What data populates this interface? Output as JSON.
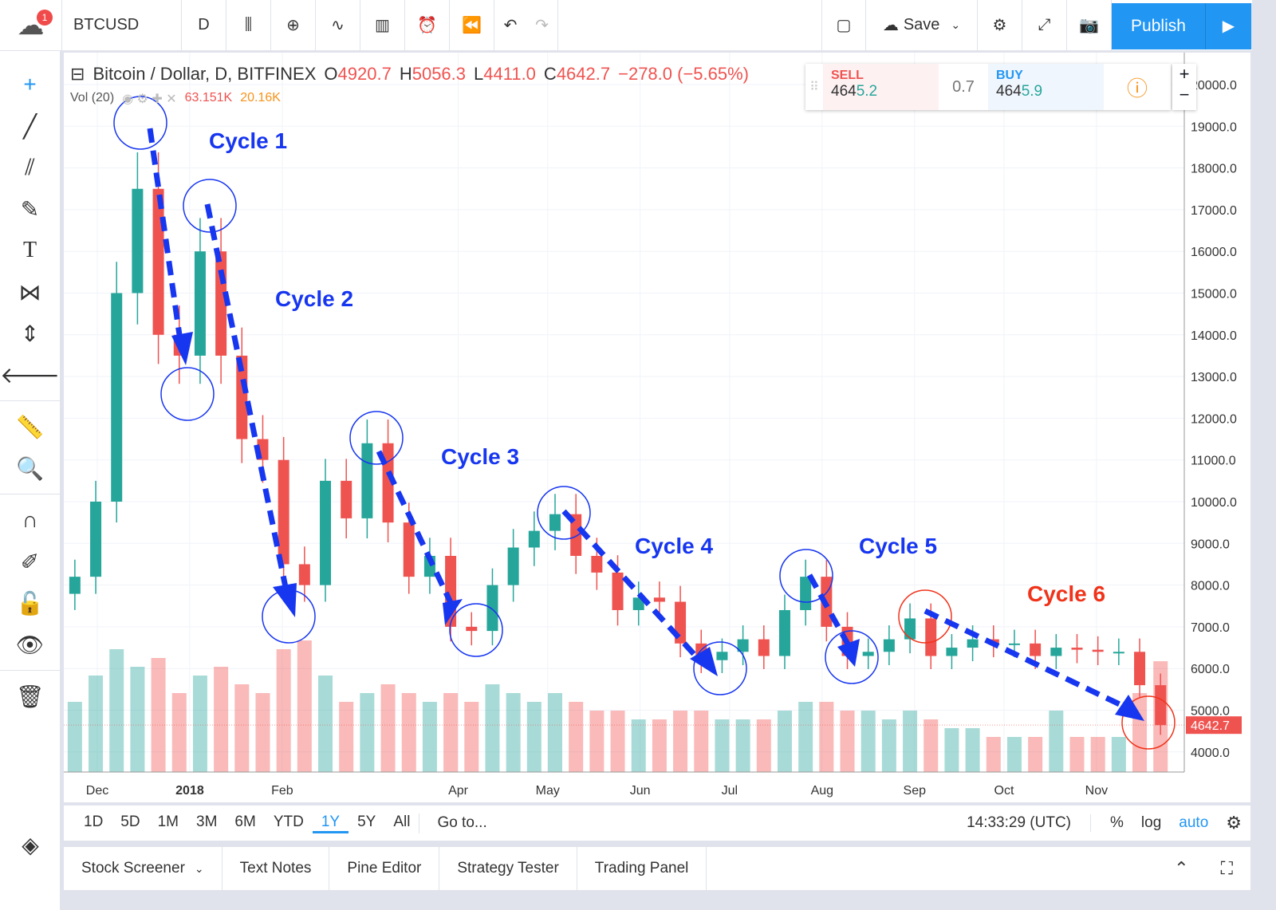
{
  "toolbar": {
    "notifications": "1",
    "symbol": "BTCUSD",
    "interval": "D",
    "save": "Save",
    "publish": "Publish"
  },
  "legend": {
    "title": "Bitcoin / Dollar, D, BITFINEX",
    "o_label": "O",
    "o": "4920.7",
    "h_label": "H",
    "h": "5056.3",
    "l_label": "L",
    "l": "4411.0",
    "c_label": "C",
    "c": "4642.7",
    "change": "−278.0 (−5.65%)",
    "vol_label": "Vol (20)",
    "vol": "63.151K",
    "vol_ma": "20.16K"
  },
  "trade": {
    "sell_label": "SELL",
    "sell_a": "464",
    "sell_b": "5.2",
    "spread": "0.7",
    "buy_label": "BUY",
    "buy_a": "464",
    "buy_b": "5.9"
  },
  "colors": {
    "up": "#26a69a",
    "down": "#ef5350",
    "annotation": "#1736f0",
    "annotation_alt": "#f0331a",
    "accent": "#2196f3"
  },
  "annotations": [
    "Cycle 1",
    "Cycle 2",
    "Cycle 3",
    "Cycle 4",
    "Cycle 5",
    "Cycle 6"
  ],
  "range": {
    "buttons": [
      "1D",
      "5D",
      "1M",
      "3M",
      "6M",
      "YTD",
      "1Y",
      "5Y",
      "All"
    ],
    "active": "1Y",
    "goto": "Go to...",
    "time": "14:33:29 (UTC)",
    "pct": "%",
    "log": "log",
    "auto": "auto"
  },
  "bottom_tabs": [
    "Stock Screener",
    "Text Notes",
    "Pine Editor",
    "Strategy Tester",
    "Trading Panel"
  ],
  "chart_data": {
    "type": "candlestick",
    "interval": "weekly summary of daily chart",
    "x_start": "2017-11-20",
    "closes": [
      8200,
      10000,
      15000,
      17500,
      14000,
      13500,
      16000,
      13500,
      11500,
      11000,
      8500,
      8000,
      10500,
      9600,
      11400,
      9500,
      8200,
      8700,
      7000,
      6900,
      8000,
      8900,
      9300,
      9700,
      8700,
      8300,
      7400,
      7700,
      7600,
      6600,
      6200,
      6400,
      6700,
      6300,
      7400,
      8200,
      7000,
      6300,
      6400,
      6700,
      7200,
      6300,
      6500,
      6700,
      6600,
      6600,
      6300,
      6500,
      6450,
      6400,
      6400,
      5600,
      4642.7
    ],
    "volume_k": [
      40,
      55,
      70,
      60,
      65,
      45,
      55,
      60,
      50,
      45,
      70,
      75,
      55,
      40,
      45,
      50,
      45,
      40,
      45,
      40,
      50,
      45,
      40,
      45,
      40,
      35,
      35,
      30,
      30,
      35,
      35,
      30,
      30,
      30,
      35,
      40,
      40,
      35,
      35,
      30,
      35,
      30,
      25,
      25,
      20,
      20,
      20,
      35,
      20,
      20,
      20,
      45,
      63.151
    ],
    "y_ticks": [
      "20000.0",
      "19000.0",
      "18000.0",
      "17000.0",
      "16000.0",
      "15000.0",
      "14000.0",
      "13000.0",
      "12000.0",
      "11000.0",
      "10000.0",
      "9000.0",
      "8000.0",
      "7000.0",
      "6000.0",
      "5000.0",
      "4000.0"
    ],
    "x_ticks": [
      "Dec",
      "2018",
      "Feb",
      "Apr",
      "May",
      "Jun",
      "Jul",
      "Aug",
      "Sep",
      "Oct",
      "Nov"
    ],
    "last_price": "4642.7",
    "ylim": [
      3500,
      21000
    ]
  }
}
